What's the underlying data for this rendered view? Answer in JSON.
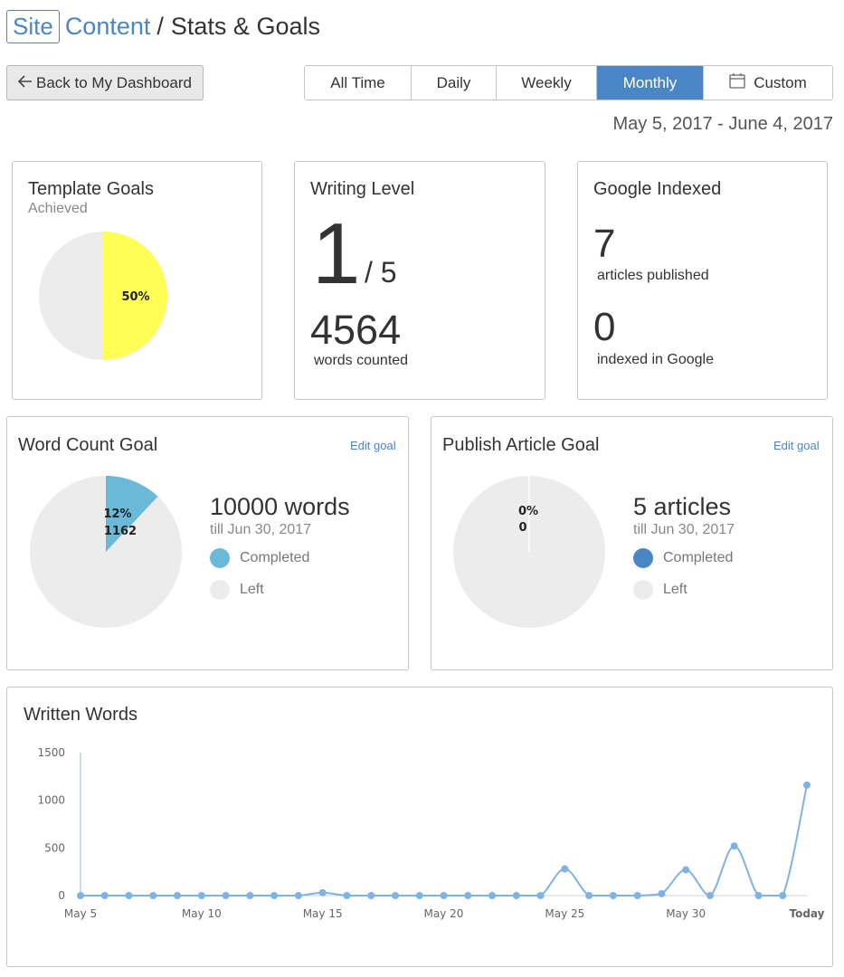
{
  "header": {
    "brand_site": "Site",
    "brand_content": "Content",
    "separator": "/",
    "page_title": "Stats & Goals"
  },
  "back_button": {
    "label": "Back to My Dashboard"
  },
  "range_tabs": [
    {
      "label": "All Time",
      "active": false
    },
    {
      "label": "Daily",
      "active": false
    },
    {
      "label": "Weekly",
      "active": false
    },
    {
      "label": "Monthly",
      "active": true
    },
    {
      "label": "Custom",
      "active": false,
      "icon": "calendar-icon"
    }
  ],
  "date_range": "May 5, 2017 - June 4, 2017",
  "template_goals": {
    "title": "Template Goals",
    "subtitle": "Achieved",
    "percent_label": "50%",
    "achieved_fraction": 0.5,
    "colors": {
      "achieved": "#ffff55",
      "remaining": "#ececec"
    }
  },
  "writing_level": {
    "title": "Writing Level",
    "level": "1",
    "level_max": "/ 5",
    "words": "4564",
    "words_label": "words counted"
  },
  "google_indexed": {
    "title": "Google Indexed",
    "published": "7",
    "published_label": "articles published",
    "indexed": "0",
    "indexed_label": "indexed in Google"
  },
  "word_count_goal": {
    "title": "Word Count Goal",
    "edit_label": "Edit goal",
    "pie_percent": "12%",
    "pie_value": "1162",
    "completed_fraction": 0.12,
    "goal": "10000 words",
    "deadline": "till Jun 30, 2017",
    "legend_completed": "Completed",
    "legend_left": "Left",
    "colors": {
      "completed": "#6ab9d9",
      "left": "#ececec"
    }
  },
  "publish_article_goal": {
    "title": "Publish Article Goal",
    "edit_label": "Edit goal",
    "pie_percent": "0%",
    "pie_value": "0",
    "completed_fraction": 0,
    "goal": "5 articles",
    "deadline": "till Jun 30, 2017",
    "legend_completed": "Completed",
    "legend_left": "Left",
    "colors": {
      "completed": "#4a86c5",
      "left": "#ececec"
    }
  },
  "chart_data": {
    "type": "line",
    "title": "Written Words",
    "xlabel": "",
    "ylabel": "",
    "ylim": [
      0,
      1500
    ],
    "yticks": [
      0,
      500,
      1000,
      1500
    ],
    "x": [
      "May 5",
      "May 6",
      "May 7",
      "May 8",
      "May 9",
      "May 10",
      "May 11",
      "May 12",
      "May 13",
      "May 14",
      "May 15",
      "May 16",
      "May 17",
      "May 18",
      "May 19",
      "May 20",
      "May 21",
      "May 22",
      "May 23",
      "May 24",
      "May 25",
      "May 26",
      "May 27",
      "May 28",
      "May 29",
      "May 30",
      "May 31",
      "Jun 1",
      "Jun 2",
      "Jun 3",
      "Today"
    ],
    "xtick_labels": [
      "May 5",
      "May 10",
      "May 15",
      "May 20",
      "May 25",
      "May 30",
      "Today"
    ],
    "series": [
      {
        "values": [
          0,
          0,
          0,
          0,
          0,
          0,
          0,
          0,
          0,
          0,
          30,
          0,
          0,
          0,
          0,
          0,
          0,
          0,
          0,
          0,
          280,
          0,
          0,
          0,
          20,
          270,
          0,
          520,
          0,
          0,
          1160
        ]
      }
    ],
    "grid": false,
    "line_color": "#7fb2e5"
  }
}
